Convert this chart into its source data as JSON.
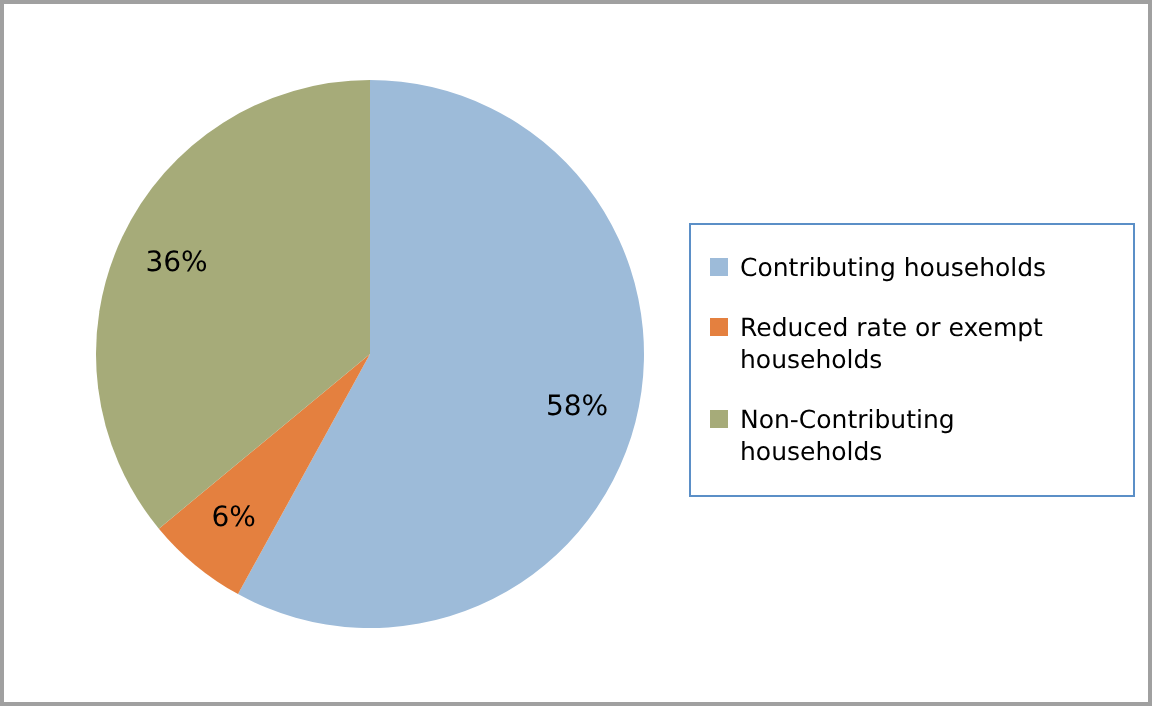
{
  "chart_data": {
    "type": "pie",
    "categories": [
      "Contributing households",
      "Reduced rate or exempt households",
      "Non-Contributing households"
    ],
    "values": [
      58,
      6,
      36
    ],
    "colors": [
      "#9dbbd9",
      "#e4803f",
      "#a6ab79"
    ],
    "value_labels": [
      "58%",
      "6%",
      "36%"
    ],
    "legend": "right"
  }
}
